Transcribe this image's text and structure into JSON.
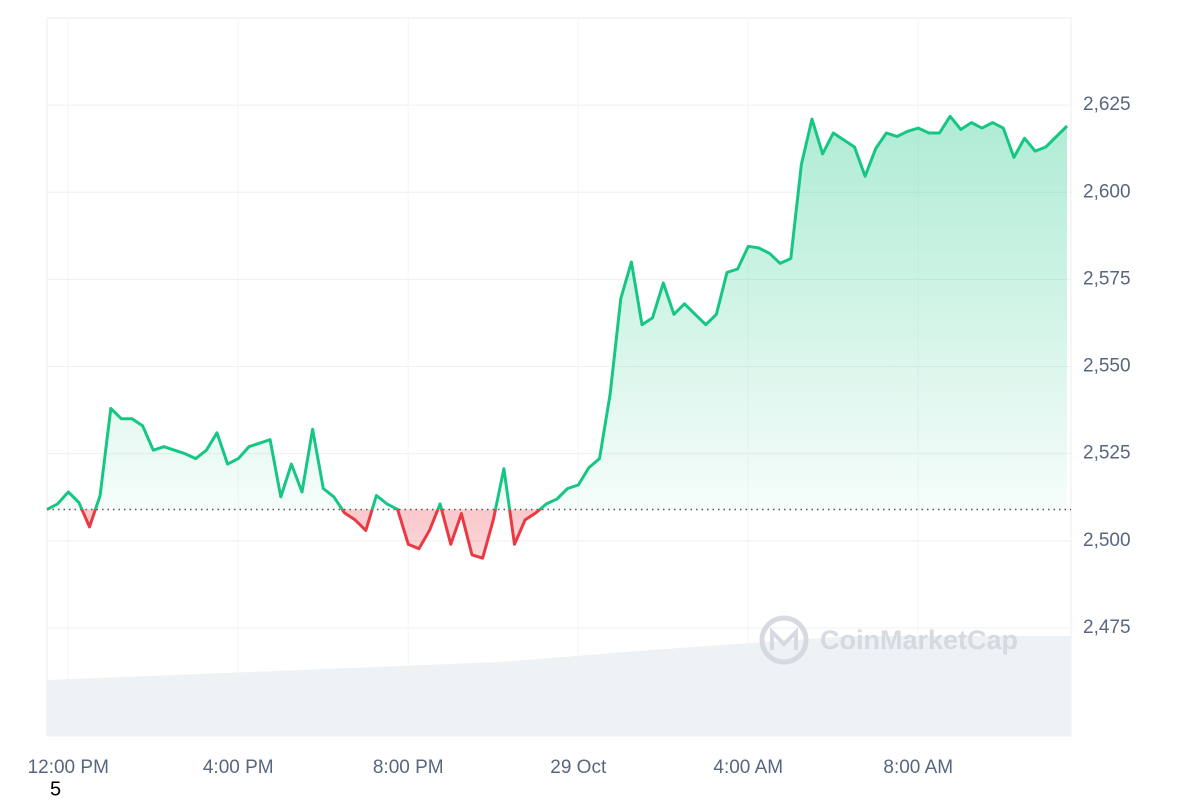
{
  "chart_data": {
    "type": "line",
    "categories": [
      null,
      null,
      "12:00 PM",
      null,
      null,
      null,
      null,
      null,
      null,
      null,
      null,
      null,
      null,
      null,
      null,
      null,
      null,
      null,
      "4:00 PM",
      null,
      null,
      null,
      null,
      null,
      null,
      null,
      null,
      null,
      null,
      null,
      null,
      null,
      null,
      null,
      "8:00 PM",
      null,
      null,
      null,
      null,
      null,
      null,
      null,
      null,
      null,
      null,
      null,
      null,
      null,
      null,
      null,
      "29 Oct",
      null,
      null,
      null,
      null,
      null,
      null,
      null,
      null,
      null,
      null,
      null,
      null,
      null,
      null,
      null,
      "4:00 AM",
      null,
      null,
      null,
      null,
      null,
      null,
      null,
      null,
      null,
      null,
      null,
      null,
      null,
      null,
      null,
      "8:00 AM",
      null,
      null,
      null,
      null,
      null,
      null,
      null,
      null,
      null,
      null,
      null,
      null,
      null,
      null
    ],
    "values": [
      2509,
      2510.6,
      2514,
      2511,
      2504,
      2513,
      2538,
      2535,
      2535,
      2533,
      2526,
      2527,
      2526,
      2525,
      2523.6,
      2526,
      2531,
      2522,
      2523.6,
      2527,
      2528,
      2529,
      2512.6,
      2522,
      2514,
      2532,
      2515,
      2512.6,
      2508,
      2506,
      2503,
      2513,
      2510.6,
      2509,
      2499,
      2497.7,
      2503,
      2510.6,
      2499,
      2507.8,
      2496,
      2495,
      2506,
      2520.7,
      2499,
      2506,
      2508,
      2510.6,
      2512,
      2515,
      2516,
      2521,
      2523.6,
      2542,
      2569.5,
      2580,
      2562,
      2564,
      2574,
      2565,
      2568,
      2565,
      2562,
      2565,
      2577,
      2578,
      2584.5,
      2584,
      2582.5,
      2579.6,
      2581,
      2608,
      2621,
      2611,
      2617,
      2615,
      2613,
      2604.6,
      2612.6,
      2617,
      2616,
      2617.5,
      2618.4,
      2617,
      2617,
      2621.8,
      2618,
      2620,
      2618.4,
      2620,
      2618.4,
      2610,
      2615.5,
      2611.8,
      2613,
      2616,
      2619
    ],
    "baseline": 2509,
    "up_color": "#16c784",
    "down_color": "#ea3943",
    "ylim": [
      2444,
      2650
    ],
    "yticks": [
      {
        "value": 2475,
        "label": "2,475"
      },
      {
        "value": 2500,
        "label": "2,500"
      },
      {
        "value": 2525,
        "label": "2,525"
      },
      {
        "value": 2550,
        "label": "2,550"
      },
      {
        "value": 2575,
        "label": "2,575"
      },
      {
        "value": 2600,
        "label": "2,600"
      },
      {
        "value": 2625,
        "label": "2,625"
      }
    ],
    "grid": true,
    "watermark": "CoinMarketCap",
    "footnote": "5"
  }
}
